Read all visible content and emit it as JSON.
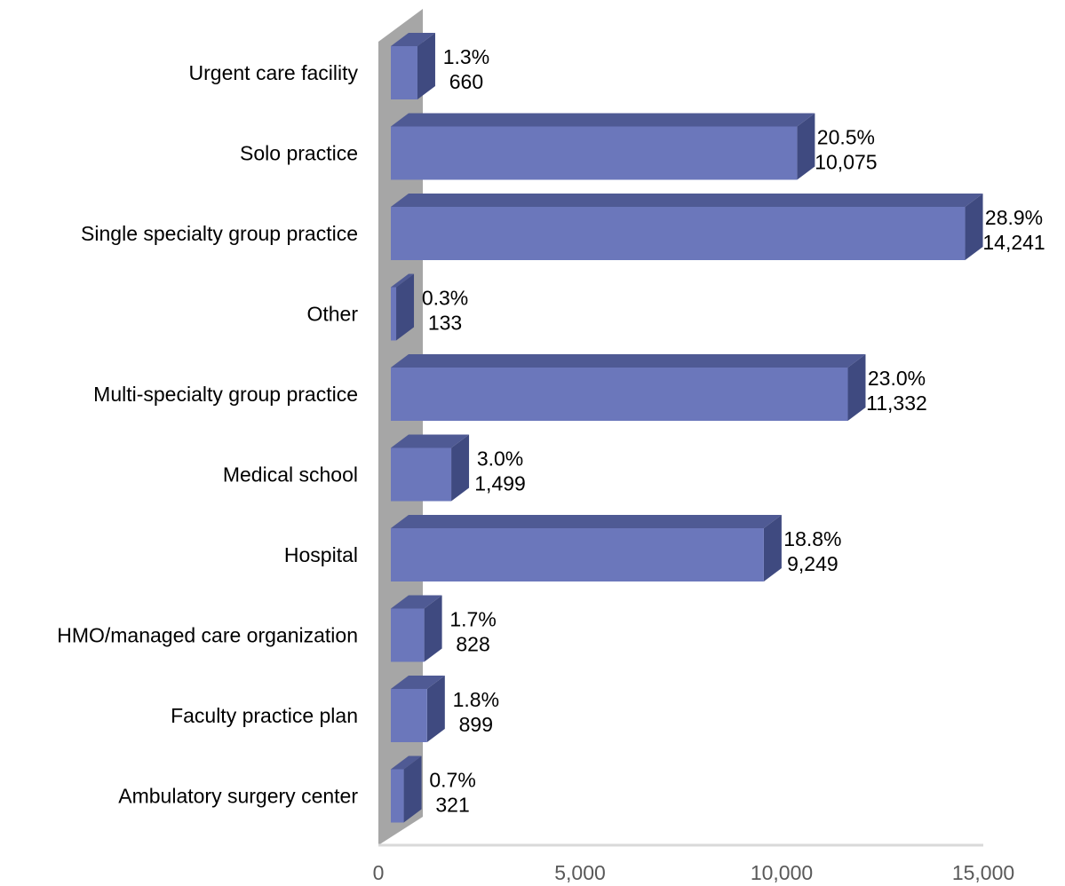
{
  "chart_data": {
    "type": "bar3d_horizontal",
    "categories": [
      "Urgent care facility",
      "Solo practice",
      "Single specialty group practice",
      "Other",
      "Multi-specialty group practice",
      "Medical school",
      "Hospital",
      "HMO/managed care organization",
      "Faculty practice plan",
      "Ambulatory surgery center"
    ],
    "values": [
      660,
      10075,
      14241,
      133,
      11332,
      1499,
      9249,
      828,
      899,
      321
    ],
    "value_labels": [
      "660",
      "10,075",
      "14,241",
      "133",
      "11,332",
      "1,499",
      "9,249",
      "828",
      "899",
      "321"
    ],
    "percent_labels": [
      "1.3%",
      "20.5%",
      "28.9%",
      "0.3%",
      "23.0%",
      "3.0%",
      "18.8%",
      "1.7%",
      "1.8%",
      "0.7%"
    ],
    "color": "#6b77bb",
    "xlim": [
      0,
      15000
    ],
    "xticks": [
      0,
      {
        "value": 5000,
        "label": "5,000"
      },
      {
        "value": 10000,
        "label": "10,000"
      },
      {
        "value": 15000,
        "label": "15,000"
      }
    ]
  }
}
